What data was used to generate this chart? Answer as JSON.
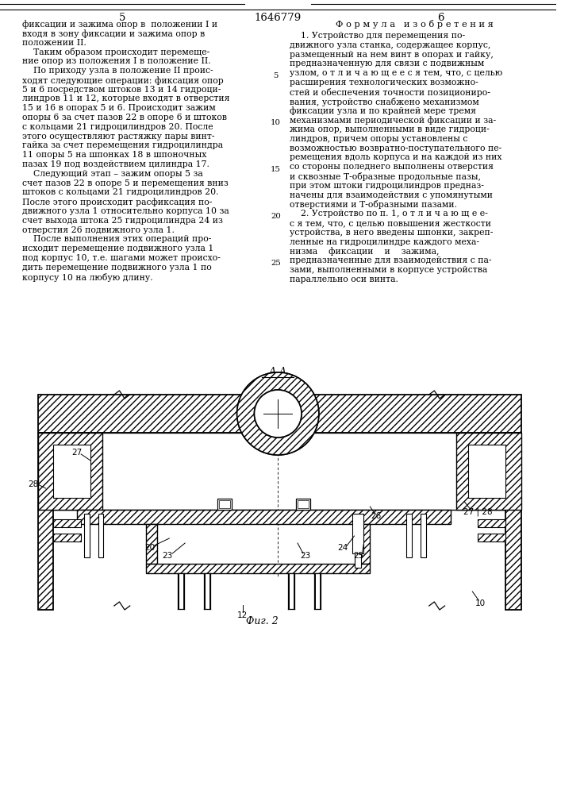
{
  "page_number_left": "5",
  "patent_number": "1646779",
  "page_number_right": "6",
  "left_text_lines": [
    "фиксации и зажима опор в  положении I и",
    "входя в зону фиксации и зажима опор в",
    "положении II.",
    "    Таким образом происходит перемеще-",
    "ние опор из положения I в положение II.",
    "    По приходу узла в положение II проис-",
    "ходят следующие операции: фиксация опор",
    "5 и 6 посредством штоков 13 и 14 гидроци-",
    "линдров 11 и 12, которые входят в отверстия",
    "15 и 16 в опорах 5 и 6. Происходит зажим",
    "опоры 6 за счет пазов 22 в опоре 6 и штоков",
    "с кольцами 21 гидроцилиндров 20. После",
    "этого осуществляют растяжку пары винт-",
    "гайка за счет перемещения гидроцилиндра",
    "11 опоры 5 на шпонках 18 в шпоночных",
    "пазах 19 под воздействием цилиндра 17.",
    "    Следующий этап – зажим опоры 5 за",
    "счет пазов 22 в опоре 5 и перемещения вниз",
    "штоков с кольцами 21 гидроцилиндров 20.",
    "После этого происходит расфиксация по-",
    "движного узла 1 относительно корпуса 10 за",
    "счет выхода штока 25 гидроцилиндра 24 из",
    "отверстия 26 подвижного узла 1.",
    "    После выполнения этих операций про-",
    "исходит перемещение подвижного узла 1",
    "под корпус 10, т.е. шагами может происхо-",
    "дить перемещение подвижного узла 1 по",
    "корпусу 10 на любую длину."
  ],
  "right_header": "Ф о р м у л а   и з о б р е т е н и я",
  "right_text_lines": [
    "    1. Устройство для перемещения по-",
    "движного узла станка, содержащее корпус,",
    "размещенный на нем винт в опорах и гайку,",
    "предназначенную для связи с подвижным",
    "узлом, о т л и ч а ю щ е е с я тем, что, с целью",
    "расширения технологических возможно-",
    "стей и обеспечения точности позициониро-",
    "вания, устройство снабжено механизмом",
    "фиксации узла и по крайней мере тремя",
    "механизмами периодической фиксации и за-",
    "жима опор, выполненными в виде гидроци-",
    "линдров, причем опоры установлены с",
    "возможностью возвратно-поступательного пе-",
    "ремещения вдоль корпуса и на каждой из них",
    "со стороны поледнего выполнены отверстия",
    "и сквозные Т-образные продольные пазы,",
    "при этом штоки гидроцилиндров предназ-",
    "начены для взаимодействия с упомянутыми",
    "отверстиями и Т-образными пазами.",
    "    2. Устройство по п. 1, о т л и ч а ю щ е е-",
    "с я тем, что, с целью повышения жесткости",
    "устройства, в него введены шпонки, закреп-",
    "ленные на гидроцилиндре каждого меха-",
    "низма    фиксации    и    зажима,",
    "предназначенные для взаимодействия с па-",
    "зами, выполненными в корпусе устройства",
    "параллельно оси винта."
  ],
  "right_line_numbers": [
    5,
    10,
    15,
    20,
    25
  ],
  "fig_label": "Фиг. 2",
  "section_label": "А-А",
  "bg_color": "#ffffff",
  "text_color": "#000000",
  "font_size_body": 7.8,
  "font_size_header": 8.2,
  "font_size_page": 9.5
}
